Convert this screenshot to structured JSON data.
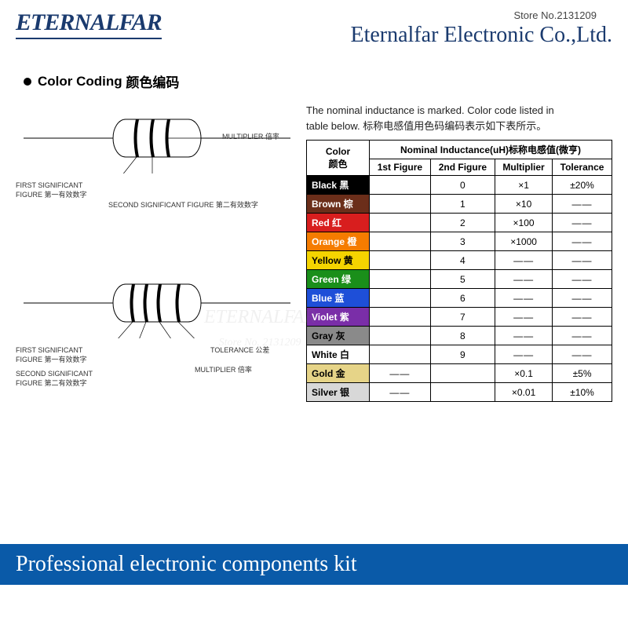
{
  "header": {
    "logo": "ETERNALFAR",
    "store_label": "Store No.",
    "store_no": "2131209",
    "company": "Eternalfar Electronic Co.,Ltd."
  },
  "section": {
    "title_en": "Color Coding",
    "title_cn": "颜色编码"
  },
  "diagram1": {
    "l1_en": "FIRST SIGNIFICANT",
    "l1b_en": "FIGURE 第一有效数字",
    "l2_en": "SECOND SIGNIFICANT FIGURE 第二有效数字",
    "l3_en": "MULTIPLIER 倍率"
  },
  "diagram2": {
    "l1_en": "FIRST SIGNIFICANT",
    "l1b_en": "FIGURE 第一有效数字",
    "l2_en": "SECOND SIGNIFICANT",
    "l2b_en": "FIGURE 第二有效数字",
    "l3_en": "TOLERANCE 公差",
    "l4_en": "MULTIPLIER 倍率"
  },
  "note": {
    "line1": "The nominal inductance is marked. Color code listed in",
    "line2_en": "table below.",
    "line2_cn": "标称电感值用色码编码表示如下表所示。"
  },
  "table": {
    "h_color": "Color",
    "h_color_cn": "颜色",
    "h_inductance": "Nominal Inductance(uH)标称电感值(微亨)",
    "h_fig1": "1st Figure",
    "h_fig2": "2nd Figure",
    "h_mult": "Multiplier",
    "h_tol": "Tolerance",
    "rows": [
      {
        "name": "Black 黑",
        "bg": "#000000",
        "fg": "#ffffff",
        "f1": "",
        "f2": "0",
        "mult": "×1",
        "tol": "±20%"
      },
      {
        "name": "Brown 棕",
        "bg": "#6b2e1a",
        "fg": "#ffffff",
        "f1": "",
        "f2": "1",
        "mult": "×10",
        "tol": "——"
      },
      {
        "name": "Red 红",
        "bg": "#d81e1e",
        "fg": "#ffffff",
        "f1": "",
        "f2": "2",
        "mult": "×100",
        "tol": "——"
      },
      {
        "name": "Orange 橙",
        "bg": "#f57c00",
        "fg": "#ffffff",
        "f1": "",
        "f2": "3",
        "mult": "×1000",
        "tol": "——"
      },
      {
        "name": "Yellow 黄",
        "bg": "#f5d400",
        "fg": "#000000",
        "f1": "",
        "f2": "4",
        "mult": "——",
        "tol": "——"
      },
      {
        "name": "Green 绿",
        "bg": "#1a8f1a",
        "fg": "#ffffff",
        "f1": "",
        "f2": "5",
        "mult": "——",
        "tol": "——"
      },
      {
        "name": "Blue 蓝",
        "bg": "#1e4fd8",
        "fg": "#ffffff",
        "f1": "",
        "f2": "6",
        "mult": "——",
        "tol": "——"
      },
      {
        "name": "Violet 紫",
        "bg": "#7a2ea8",
        "fg": "#ffffff",
        "f1": "",
        "f2": "7",
        "mult": "——",
        "tol": "——"
      },
      {
        "name": "Gray 灰",
        "bg": "#8a8a8a",
        "fg": "#000000",
        "f1": "",
        "f2": "8",
        "mult": "——",
        "tol": "——"
      },
      {
        "name": "White 白",
        "bg": "#ffffff",
        "fg": "#000000",
        "f1": "",
        "f2": "9",
        "mult": "——",
        "tol": "——"
      },
      {
        "name": "Gold 金",
        "bg": "#e6d488",
        "fg": "#000000",
        "f1": "——",
        "f2": "",
        "mult": "×0.1",
        "tol": "±5%"
      },
      {
        "name": "Silver 银",
        "bg": "#d8d8d8",
        "fg": "#000000",
        "f1": "——",
        "f2": "",
        "mult": "×0.01",
        "tol": "±10%"
      }
    ]
  },
  "footer": "Professional electronic components kit",
  "watermark": {
    "l1": "ETERNALFAR",
    "l2": "Store No. 2131209"
  }
}
